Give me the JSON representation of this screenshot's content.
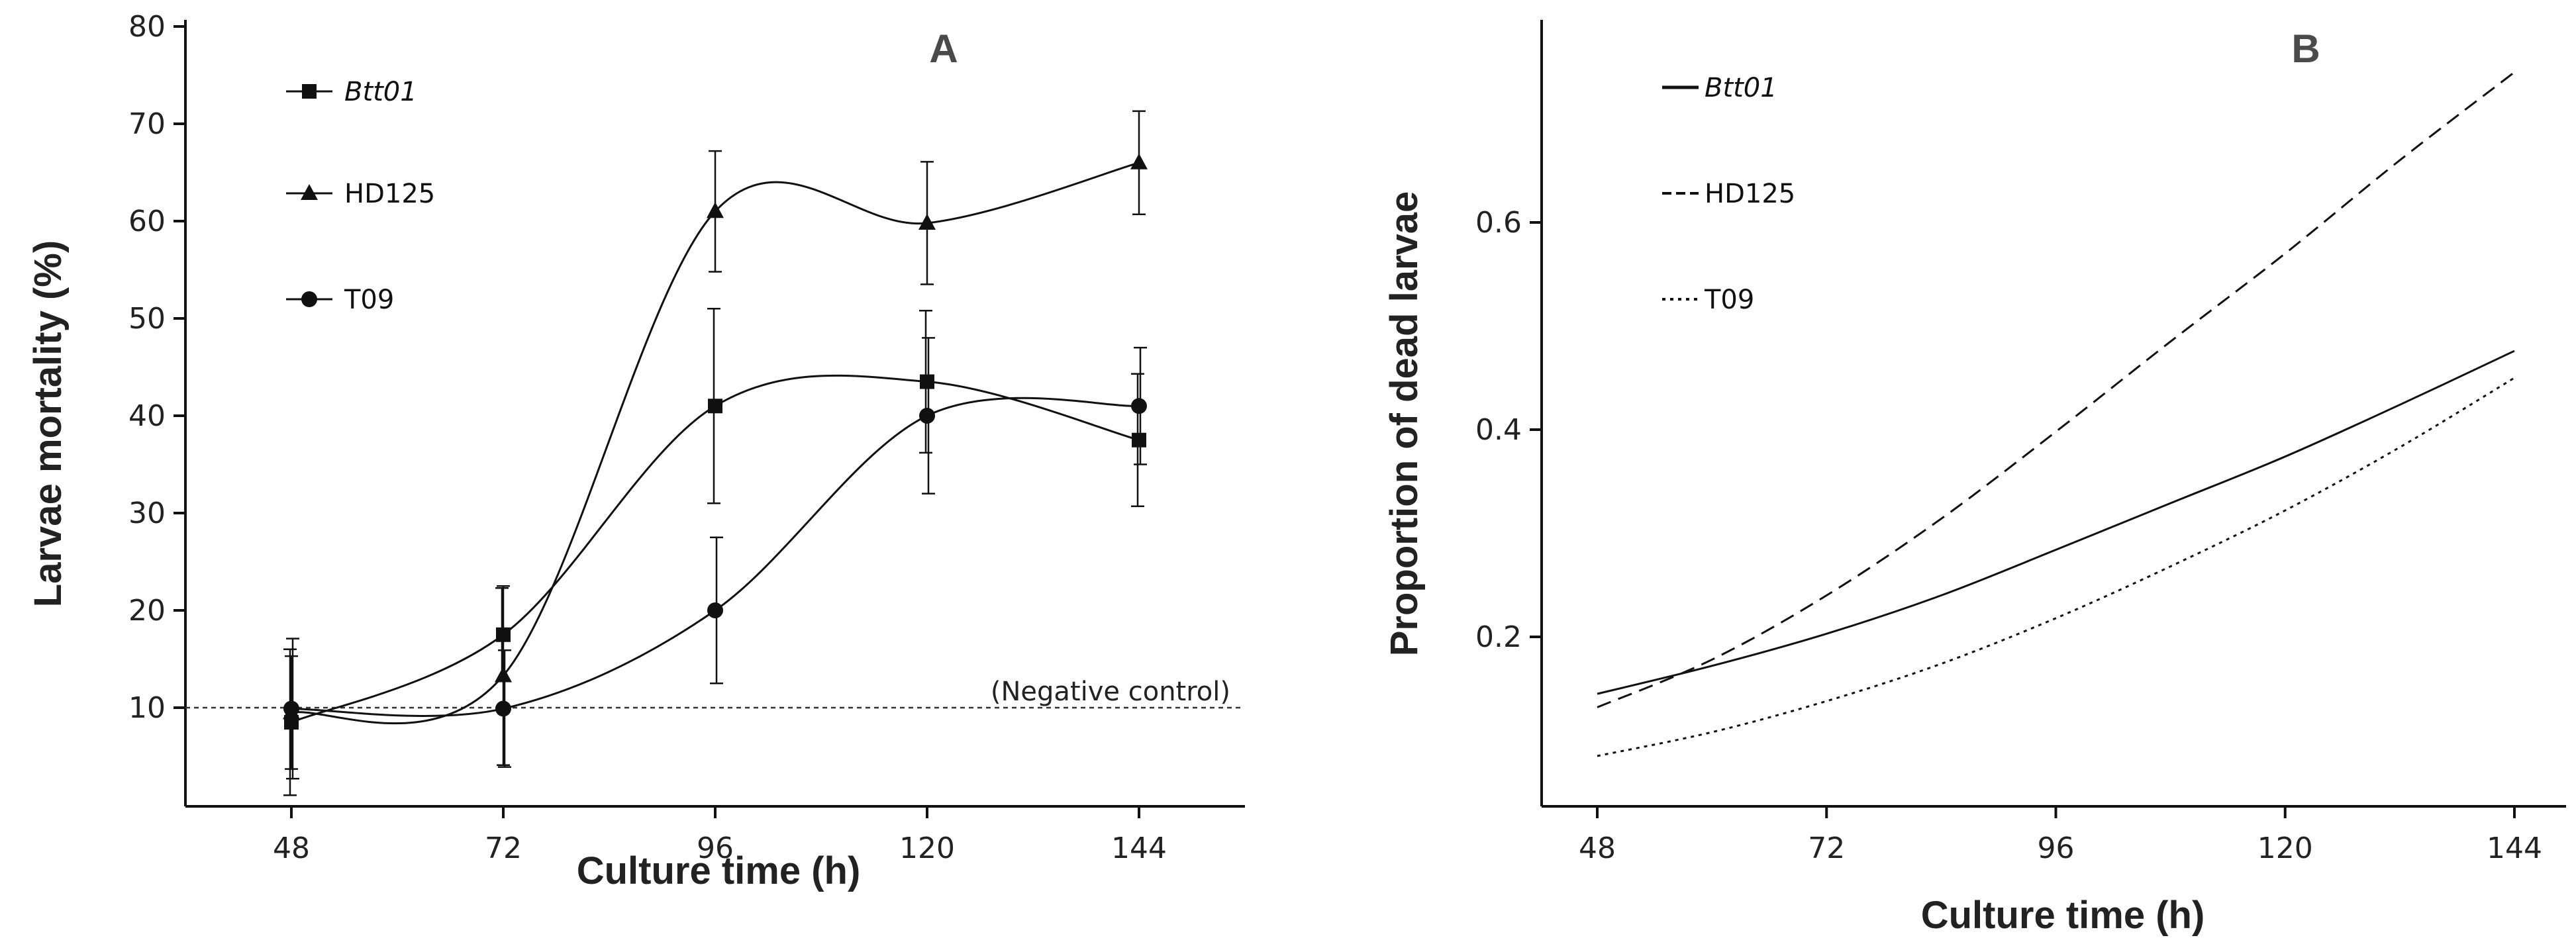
{
  "chart_data": [
    {
      "panel_label": "A",
      "type": "line",
      "xlabel": "Culture time (h)",
      "ylabel": "Larvae mortality (%)",
      "x": [
        48,
        72,
        96,
        120,
        144
      ],
      "xlim": [
        36,
        156
      ],
      "ylim": [
        0,
        80
      ],
      "xticks": [
        "48",
        "72",
        "96",
        "120",
        "144"
      ],
      "yticks": [
        "10",
        "20",
        "30",
        "40",
        "50",
        "60",
        "70",
        "80"
      ],
      "grid": false,
      "legend_position": "top-left",
      "series": [
        {
          "name": "Btt01",
          "italic": true,
          "marker": "square",
          "values": [
            8.5,
            17.5,
            41.0,
            43.5,
            37.5
          ],
          "error": [
            7.5,
            4.8,
            10.0,
            7.3,
            6.8
          ]
        },
        {
          "name": "HD125",
          "italic": false,
          "marker": "triangle",
          "values": [
            9.5,
            13.3,
            61.0,
            59.8,
            66.0
          ],
          "error": [
            5.8,
            9.2,
            6.2,
            6.3,
            5.3
          ]
        },
        {
          "name": "T09",
          "italic": false,
          "marker": "circle",
          "values": [
            9.9,
            9.9,
            20.0,
            40.0,
            41.0
          ],
          "error": [
            7.2,
            6.0,
            7.5,
            8.0,
            6.0
          ]
        }
      ],
      "reference_line": {
        "y": 10,
        "label": "(Negative control)"
      }
    },
    {
      "panel_label": "B",
      "type": "line",
      "xlabel": "Culture time (h)",
      "ylabel": "Proportion of dead larvae",
      "x": [
        48,
        60,
        72,
        84,
        96,
        108,
        120,
        132,
        144
      ],
      "xlim": [
        42,
        150
      ],
      "ylim": [
        0.04,
        0.79
      ],
      "xticks": [
        "48",
        "72",
        "96",
        "120",
        "144"
      ],
      "yticks": [
        "0.2",
        "0.4",
        "0.6"
      ],
      "grid": false,
      "legend_position": "top-left",
      "series": [
        {
          "name": "Btt01",
          "italic": true,
          "dash": "solid",
          "values": [
            0.145,
            0.172,
            0.203,
            0.24,
            0.284,
            0.329,
            0.374,
            0.424,
            0.476
          ]
        },
        {
          "name": "HD125",
          "italic": false,
          "dash": "dashed",
          "values": [
            0.132,
            0.178,
            0.24,
            0.314,
            0.398,
            0.485,
            0.57,
            0.66,
            0.745
          ]
        },
        {
          "name": "T09",
          "italic": false,
          "dash": "dotted",
          "values": [
            0.085,
            0.108,
            0.138,
            0.174,
            0.218,
            0.268,
            0.322,
            0.383,
            0.45
          ]
        }
      ]
    }
  ]
}
